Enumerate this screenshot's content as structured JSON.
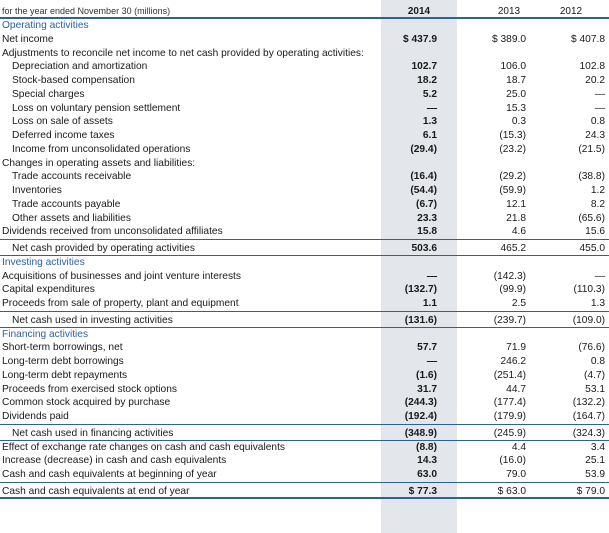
{
  "header": {
    "label": "for the year ended November 30 (millions)",
    "years": [
      "2014",
      "2013",
      "2012"
    ]
  },
  "rows": [
    {
      "label": "Operating activities",
      "kind": "section",
      "values": [
        "",
        "",
        ""
      ]
    },
    {
      "label": "Net income",
      "kind": "plain",
      "values": [
        "$ 437.9",
        "$ 389.0",
        "$ 407.8"
      ]
    },
    {
      "label": "Adjustments to reconcile net income to net cash provided by operating activities:",
      "kind": "plain",
      "values": [
        "",
        "",
        ""
      ]
    },
    {
      "label": "Depreciation and amortization",
      "kind": "indent",
      "values": [
        "102.7",
        "106.0",
        "102.8"
      ]
    },
    {
      "label": "Stock-based compensation",
      "kind": "indent",
      "values": [
        "18.2",
        "18.7",
        "20.2"
      ]
    },
    {
      "label": "Special charges",
      "kind": "indent",
      "values": [
        "5.2",
        "25.0",
        "—"
      ]
    },
    {
      "label": "Loss on voluntary pension settlement",
      "kind": "indent",
      "values": [
        "—",
        "15.3",
        "—"
      ]
    },
    {
      "label": "Loss on sale of assets",
      "kind": "indent",
      "values": [
        "1.3",
        "0.3",
        "0.8"
      ]
    },
    {
      "label": "Deferred income taxes",
      "kind": "indent",
      "values": [
        "6.1",
        "(15.3)",
        "24.3"
      ]
    },
    {
      "label": "Income from unconsolidated operations",
      "kind": "indent",
      "values": [
        "(29.4)",
        "(23.2)",
        "(21.5)"
      ]
    },
    {
      "label": "Changes in operating assets and liabilities:",
      "kind": "plain",
      "values": [
        "",
        "",
        ""
      ]
    },
    {
      "label": "Trade accounts receivable",
      "kind": "indent",
      "values": [
        "(16.4)",
        "(29.2)",
        "(38.8)"
      ]
    },
    {
      "label": "Inventories",
      "kind": "indent",
      "values": [
        "(54.4)",
        "(59.9)",
        "1.2"
      ]
    },
    {
      "label": "Trade accounts payable",
      "kind": "indent",
      "values": [
        "(6.7)",
        "12.1",
        "8.2"
      ]
    },
    {
      "label": "Other assets and liabilities",
      "kind": "indent",
      "values": [
        "23.3",
        "21.8",
        "(65.6)"
      ]
    },
    {
      "label": "Dividends received from unconsolidated affiliates",
      "kind": "plain",
      "values": [
        "15.8",
        "4.6",
        "15.6"
      ]
    },
    {
      "label": "Net cash provided by operating activities",
      "kind": "total",
      "values": [
        "503.6",
        "465.2",
        "455.0"
      ]
    },
    {
      "label": "Investing activities",
      "kind": "section",
      "values": [
        "",
        "",
        ""
      ]
    },
    {
      "label": "Acquisitions of businesses and joint venture interests",
      "kind": "plain",
      "values": [
        "—",
        "(142.3)",
        "—"
      ]
    },
    {
      "label": "Capital expenditures",
      "kind": "plain",
      "values": [
        "(132.7)",
        "(99.9)",
        "(110.3)"
      ]
    },
    {
      "label": "Proceeds from sale of property, plant and equipment",
      "kind": "plain",
      "values": [
        "1.1",
        "2.5",
        "1.3"
      ]
    },
    {
      "label": "Net cash used in investing activities",
      "kind": "total",
      "values": [
        "(131.6)",
        "(239.7)",
        "(109.0)"
      ]
    },
    {
      "label": "Financing activities",
      "kind": "section",
      "values": [
        "",
        "",
        ""
      ]
    },
    {
      "label": "Short-term borrowings, net",
      "kind": "plain",
      "values": [
        "57.7",
        "71.9",
        "(76.6)"
      ]
    },
    {
      "label": "Long-term debt borrowings",
      "kind": "plain",
      "values": [
        "—",
        "246.2",
        "0.8"
      ]
    },
    {
      "label": "Long-term debt repayments",
      "kind": "plain",
      "values": [
        "(1.6)",
        "(251.4)",
        "(4.7)"
      ]
    },
    {
      "label": "Proceeds from exercised stock options",
      "kind": "plain",
      "values": [
        "31.7",
        "44.7",
        "53.1"
      ]
    },
    {
      "label": "Common stock acquired by purchase",
      "kind": "plain",
      "values": [
        "(244.3)",
        "(177.4)",
        "(132.2)"
      ]
    },
    {
      "label": "Dividends paid",
      "kind": "plain",
      "values": [
        "(192.4)",
        "(179.9)",
        "(164.7)"
      ]
    },
    {
      "label": "Net cash used in financing activities",
      "kind": "total",
      "values": [
        "(348.9)",
        "(245.9)",
        "(324.3)"
      ]
    },
    {
      "label": "Effect of exchange rate changes on cash and cash equivalents",
      "kind": "plain",
      "values": [
        "(8.8)",
        "4.4",
        "3.4"
      ]
    },
    {
      "label": "Increase (decrease) in cash and cash equivalents",
      "kind": "plain",
      "values": [
        "14.3",
        "(16.0)",
        "25.1"
      ]
    },
    {
      "label": "Cash and cash equivalents at beginning of year",
      "kind": "plain",
      "values": [
        "63.0",
        "79.0",
        "53.9"
      ]
    },
    {
      "label": "Cash and cash equivalents at end of year",
      "kind": "final",
      "values": [
        "$ 77.3",
        "$ 63.0",
        "$ 79.0"
      ]
    }
  ]
}
